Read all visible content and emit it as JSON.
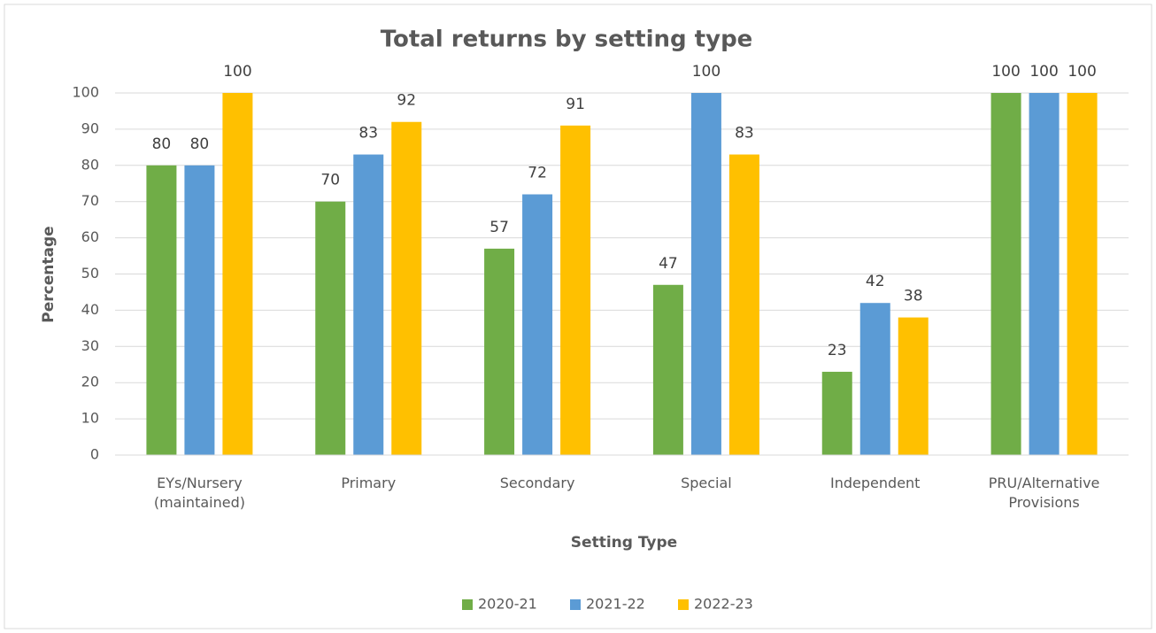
{
  "chart_data": {
    "type": "bar",
    "title": "Total returns by setting type",
    "x_label": "Setting Type",
    "y_label": "Percentage",
    "categories": [
      "EYs/Nursery (maintained)",
      "Primary",
      "Secondary",
      "Special",
      "Independent",
      "PRU/Alternative Provisions"
    ],
    "series": [
      {
        "name": "2020-21",
        "color": "#70ad47",
        "values": [
          80,
          70,
          57,
          47,
          23,
          100
        ]
      },
      {
        "name": "2021-22",
        "color": "#5b9bd5",
        "values": [
          80,
          83,
          72,
          100,
          42,
          100
        ]
      },
      {
        "name": "2022-23",
        "color": "#ffc000",
        "values": [
          100,
          92,
          91,
          83,
          38,
          100
        ]
      }
    ],
    "ylim": [
      0,
      100
    ],
    "yticks": [
      0,
      10,
      20,
      30,
      40,
      50,
      60,
      70,
      80,
      90,
      100
    ],
    "grid": true,
    "legend": "bottom"
  }
}
